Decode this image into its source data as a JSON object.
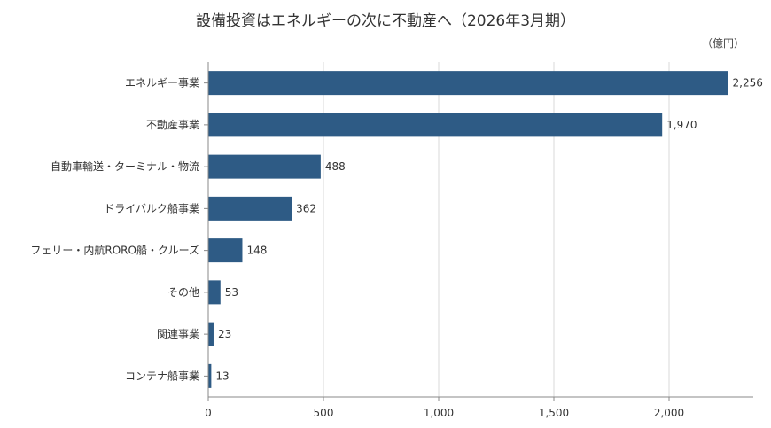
{
  "chart_data": {
    "type": "bar",
    "orientation": "horizontal",
    "title": "設備投資はエネルギーの次に不動産へ（2026年3月期）",
    "unit": "（億円）",
    "categories": [
      "エネルギー事業",
      "不動産事業",
      "自動車輸送・ターミナル・物流",
      "ドライバルク船事業",
      "フェリー・内航RORO船・クルーズ",
      "その他",
      "関連事業",
      "コンテナ船事業"
    ],
    "values": [
      2256,
      1970,
      488,
      362,
      148,
      53,
      23,
      13
    ],
    "value_labels": [
      "2,256",
      "1,970",
      "488",
      "362",
      "148",
      "53",
      "23",
      "13"
    ],
    "xlim": [
      0,
      2350
    ],
    "xticks": [
      0,
      500,
      1000,
      1500,
      2000
    ],
    "xtick_labels": [
      "0",
      "500",
      "1,000",
      "1,500",
      "2,000"
    ],
    "grid": "vertical",
    "bar_color": "#2e5b85"
  }
}
